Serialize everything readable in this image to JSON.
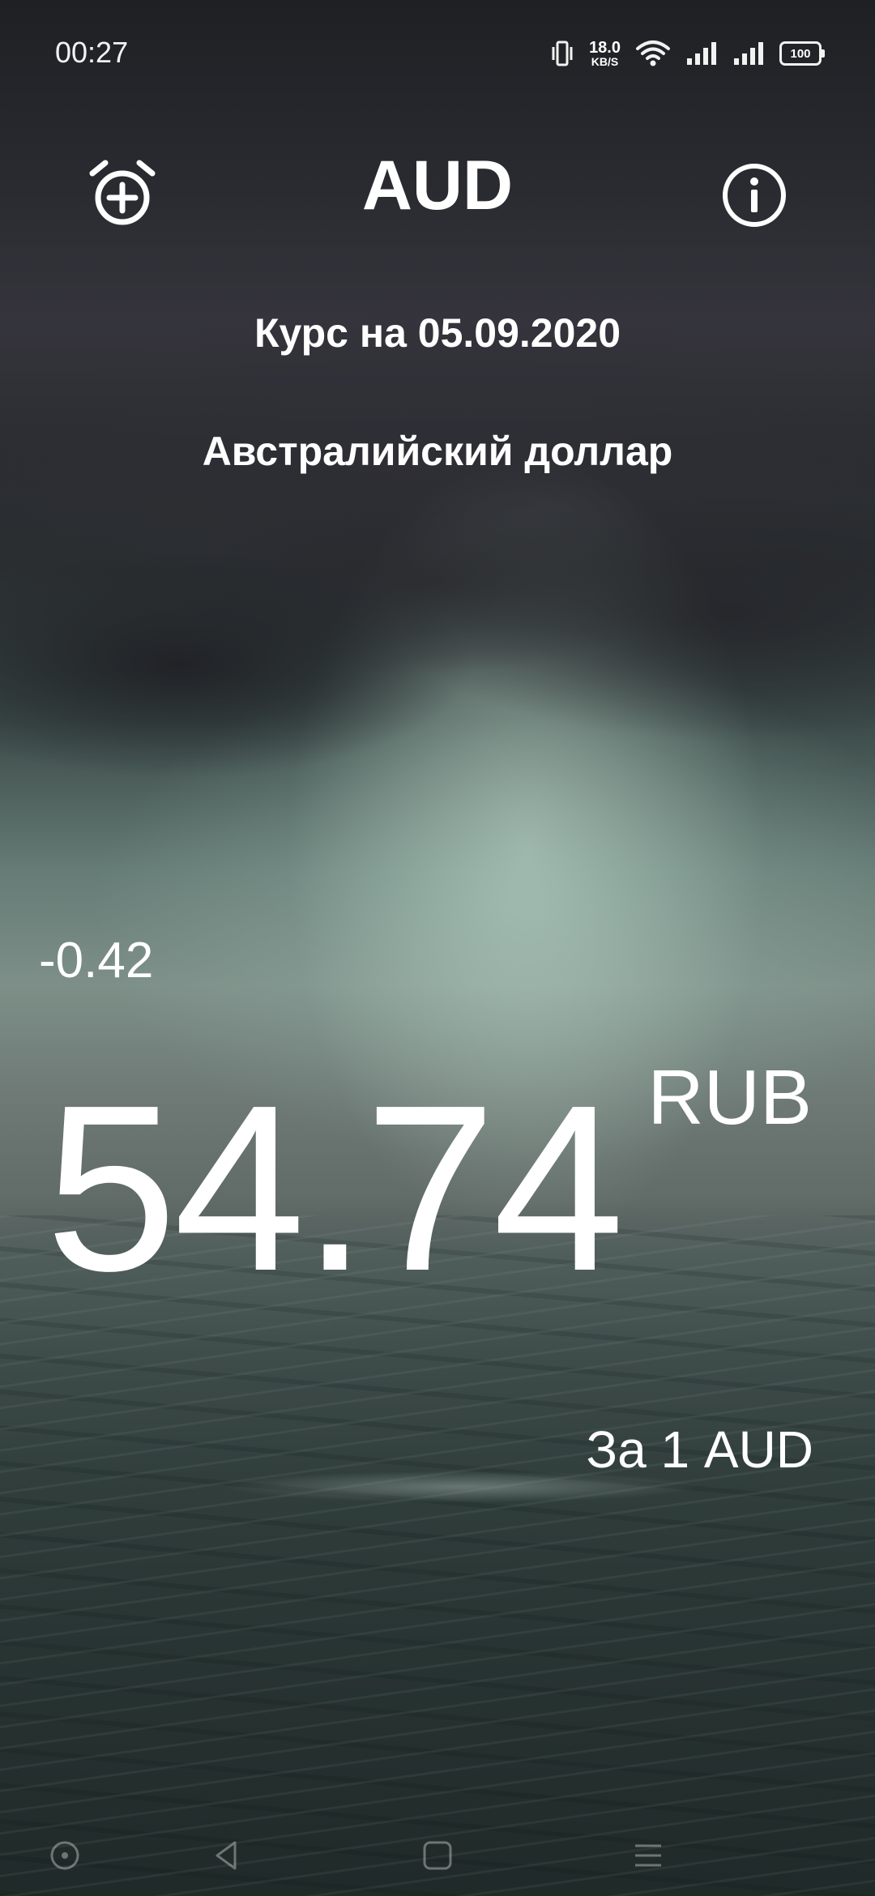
{
  "status_bar": {
    "time": "00:27",
    "net_speed_value": "18.0",
    "net_speed_unit": "KB/S",
    "battery": "100"
  },
  "header": {
    "currency_code": "AUD",
    "alarm_icon": "alarm-add-icon",
    "info_icon": "info-icon"
  },
  "rate_date": "Курс на 05.09.2020",
  "currency_name": "Австралийский доллар",
  "rate": {
    "change": "-0.42",
    "value": "54.74",
    "target_currency": "RUB",
    "per_unit": "За 1 AUD"
  },
  "nav_bar": {
    "icons": [
      "home-icon",
      "back-icon",
      "recents-icon",
      "menu-icon"
    ]
  },
  "colors": {
    "text": "#ffffff",
    "background_top": "#1f2024",
    "background_sea": "#2b3736"
  }
}
